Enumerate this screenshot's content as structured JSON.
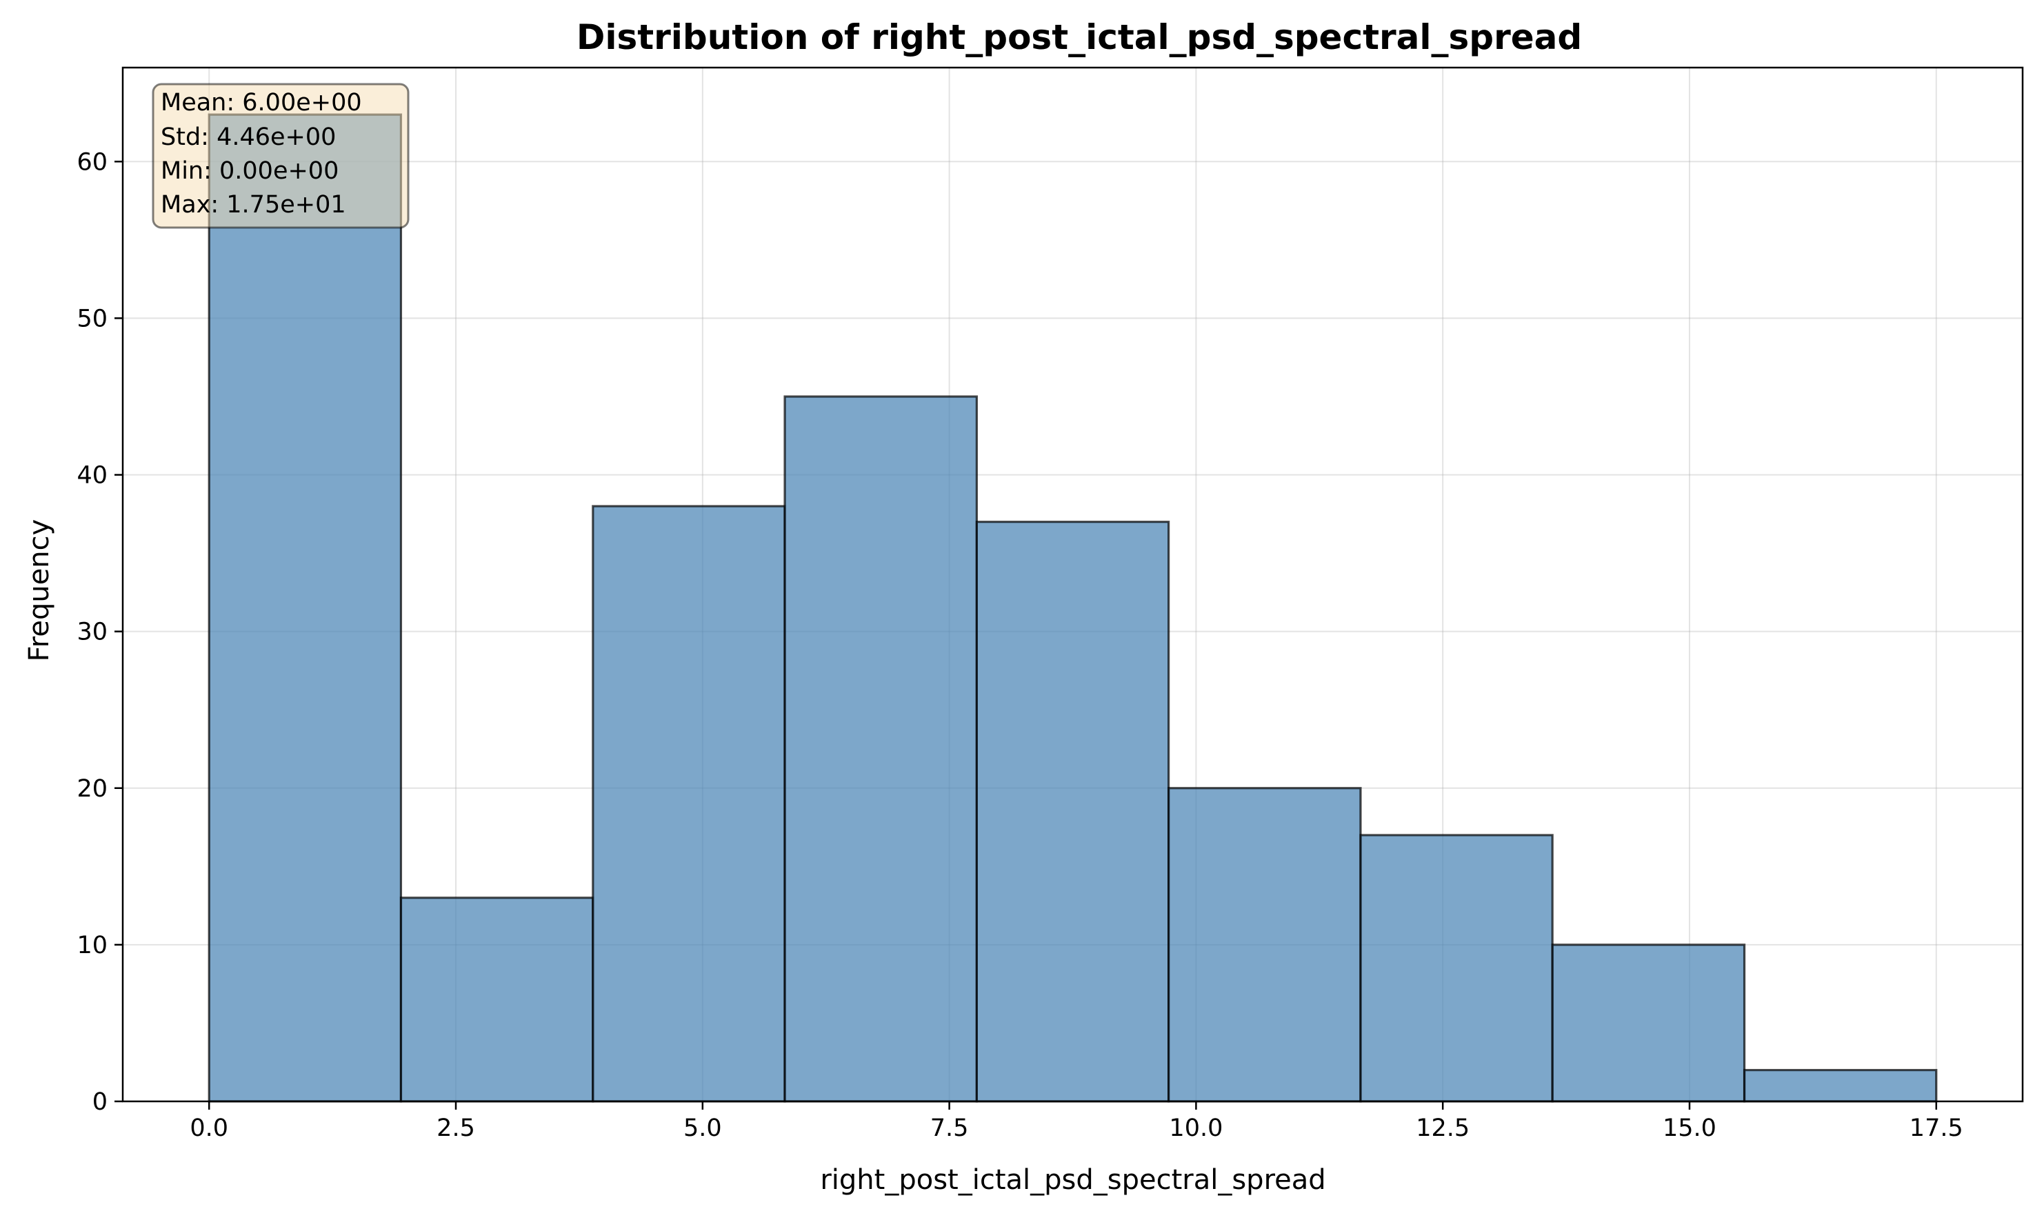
{
  "chart_data": {
    "type": "bar",
    "subtype": "histogram",
    "title": "Distribution of right_post_ictal_psd_spectral_spread",
    "xlabel": "right_post_ictal_psd_spectral_spread",
    "ylabel": "Frequency",
    "bin_edges": [
      0.0,
      1.944,
      3.889,
      5.833,
      7.778,
      9.722,
      11.667,
      13.611,
      15.556,
      17.5
    ],
    "values": [
      63,
      13,
      38,
      45,
      37,
      20,
      17,
      10,
      2
    ],
    "xlim": [
      -0.875,
      18.375
    ],
    "ylim": [
      0,
      66
    ],
    "xticks": [
      0.0,
      2.5,
      5.0,
      7.5,
      10.0,
      12.5,
      15.0,
      17.5
    ],
    "xtick_labels": [
      "0.0",
      "2.5",
      "5.0",
      "7.5",
      "10.0",
      "12.5",
      "15.0",
      "17.5"
    ],
    "yticks": [
      0,
      10,
      20,
      30,
      40,
      50,
      60
    ],
    "ytick_labels": [
      "0",
      "10",
      "20",
      "30",
      "40",
      "50",
      "60"
    ],
    "grid": true,
    "bar_color": "#4682b4",
    "edge_color": "#000000",
    "stats": {
      "mean": "Mean: 6.00e+00",
      "std": "Std: 4.46e+00",
      "min": "Min: 0.00e+00",
      "max": "Max: 1.75e+01"
    },
    "stats_box_color": "#f5deb3"
  }
}
